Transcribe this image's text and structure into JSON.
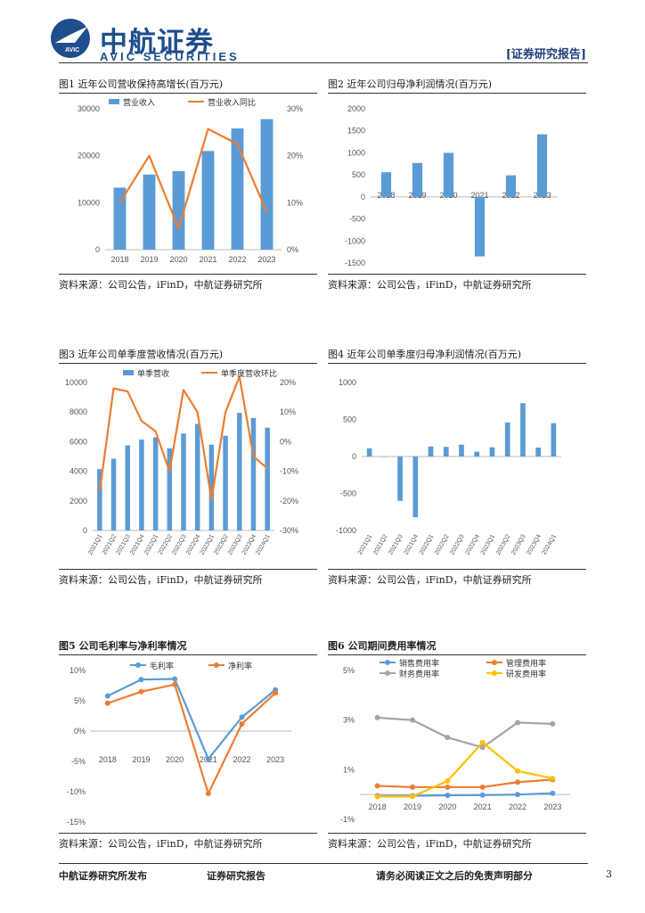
{
  "header": {
    "brand_cn": "中航证券",
    "brand_en": "AVIC SECURITIES",
    "logo_text": "AVIC",
    "report_tag": "[证券研究报告]"
  },
  "source_text": "资料来源：公司公告，iFinD，中航证券研究所",
  "colors": {
    "blue": "#5b9bd5",
    "orange": "#ed7d31",
    "gray": "#a5a5a5",
    "yellow": "#ffc000",
    "brand": "#1f4e8c"
  },
  "fig1": {
    "title": "图1  近年公司营收保持高增长(百万元)"
  },
  "fig2": {
    "title": "图2  近年公司归母净利润情况(百万元)"
  },
  "fig3": {
    "title": "图3  近年公司单季度营收情况(百万元)"
  },
  "fig4": {
    "title": "图4  近年公司单季度归母净利润情况(百万元)"
  },
  "fig5": {
    "title": "图5  公司毛利率与净利率情况"
  },
  "fig6": {
    "title": "图6  公司期间费用率情况"
  },
  "chart_data": [
    {
      "id": "fig1",
      "type": "bar+line",
      "categories": [
        "2018",
        "2019",
        "2020",
        "2021",
        "2022",
        "2023"
      ],
      "series": [
        {
          "name": "营业收入",
          "kind": "bar",
          "axis": "left",
          "values": [
            13200,
            16000,
            16700,
            21000,
            25800,
            27800
          ]
        },
        {
          "name": "营业收入同比",
          "kind": "line",
          "axis": "right",
          "values": [
            10,
            20,
            4.5,
            25.7,
            22.5,
            8
          ]
        }
      ],
      "yleft": {
        "min": 0,
        "max": 30000,
        "ticks": [
          "0",
          "10000",
          "20000",
          "30000"
        ]
      },
      "yright": {
        "min": 0,
        "max": 30,
        "ticks": [
          "0%",
          "10%",
          "20%",
          "30%"
        ]
      },
      "legend": "top"
    },
    {
      "id": "fig2",
      "type": "bar",
      "categories": [
        "2018",
        "2019",
        "2020",
        "2021",
        "2022",
        "2023"
      ],
      "series": [
        {
          "name": "归母净利润",
          "values": [
            560,
            770,
            1000,
            -1350,
            490,
            1420
          ]
        }
      ],
      "yleft": {
        "min": -1500,
        "max": 2000,
        "ticks": [
          "-1500",
          "-1000",
          "-500",
          "0",
          "500",
          "1000",
          "1500",
          "2000"
        ]
      }
    },
    {
      "id": "fig3",
      "type": "bar+line",
      "categories": [
        "2021Q1",
        "2021Q2",
        "2021Q3",
        "2021Q4",
        "2022Q1",
        "2022Q2",
        "2022Q3",
        "2022Q4",
        "2023Q1",
        "2023Q2",
        "2023Q3",
        "2023Q4",
        "2024Q1"
      ],
      "series": [
        {
          "name": "单季营收",
          "kind": "bar",
          "axis": "left",
          "values": [
            4150,
            4850,
            5750,
            6150,
            6300,
            5550,
            6550,
            7200,
            5800,
            6400,
            7950,
            7600,
            6950
          ]
        },
        {
          "name": "单季度营收环比",
          "kind": "line",
          "axis": "right",
          "values": [
            -17,
            18,
            17,
            7,
            3.5,
            -10,
            17.5,
            10,
            -19.5,
            10,
            22,
            -5,
            -9
          ]
        }
      ],
      "yleft": {
        "min": 0,
        "max": 10000,
        "ticks": [
          "0",
          "2000",
          "4000",
          "6000",
          "8000",
          "10000"
        ]
      },
      "yright": {
        "min": -30,
        "max": 20,
        "ticks": [
          "-30%",
          "-20%",
          "-10%",
          "0%",
          "10%",
          "20%"
        ]
      },
      "legend": "top"
    },
    {
      "id": "fig4",
      "type": "bar",
      "categories": [
        "2021Q1",
        "2021Q2",
        "2021Q3",
        "2021Q4",
        "2022Q1",
        "2022Q2",
        "2022Q3",
        "2022Q4",
        "2023Q1",
        "2023Q2",
        "2023Q3",
        "2023Q4",
        "2024Q1"
      ],
      "series": [
        {
          "name": "单季度归母净利润",
          "values": [
            110,
            -5,
            -600,
            -820,
            135,
            130,
            160,
            65,
            125,
            460,
            720,
            120,
            450
          ]
        }
      ],
      "yleft": {
        "min": -1000,
        "max": 1000,
        "ticks": [
          "-1000",
          "-500",
          "0",
          "500",
          "1000"
        ]
      }
    },
    {
      "id": "fig5",
      "type": "line",
      "categories": [
        "2018",
        "2019",
        "2020",
        "2021",
        "2022",
        "2023"
      ],
      "series": [
        {
          "name": "毛利率",
          "values": [
            5.8,
            8.5,
            8.6,
            -4.6,
            2.3,
            6.8
          ]
        },
        {
          "name": "净利率",
          "values": [
            4.6,
            6.5,
            7.7,
            -10.3,
            1.2,
            6.3
          ]
        }
      ],
      "yleft": {
        "min": -15,
        "max": 10,
        "ticks": [
          "-15%",
          "-10%",
          "-5%",
          "0%",
          "5%",
          "10%"
        ]
      },
      "legend": "top"
    },
    {
      "id": "fig6",
      "type": "line",
      "categories": [
        "2018",
        "2019",
        "2020",
        "2021",
        "2022",
        "2023"
      ],
      "series": [
        {
          "name": "销售费用率",
          "values": [
            -0.05,
            -0.05,
            -0.03,
            -0.02,
            0.0,
            0.05
          ]
        },
        {
          "name": "管理费用率",
          "values": [
            0.35,
            0.3,
            0.3,
            0.3,
            0.5,
            0.6
          ]
        },
        {
          "name": "财务费用率",
          "values": [
            3.1,
            3.0,
            2.3,
            1.9,
            2.9,
            2.85
          ]
        },
        {
          "name": "研发费用率",
          "values": [
            -0.08,
            -0.08,
            0.55,
            2.1,
            0.95,
            0.65
          ]
        }
      ],
      "yleft": {
        "min": -1,
        "max": 5,
        "ticks": [
          "-1%",
          "1%",
          "3%",
          "5%"
        ]
      },
      "legend": "top"
    }
  ],
  "footer": {
    "left": "中航证券研究所发布",
    "mid": "证券研究报告",
    "right": "请务必阅读正文之后的免责声明部分",
    "page": "3"
  }
}
